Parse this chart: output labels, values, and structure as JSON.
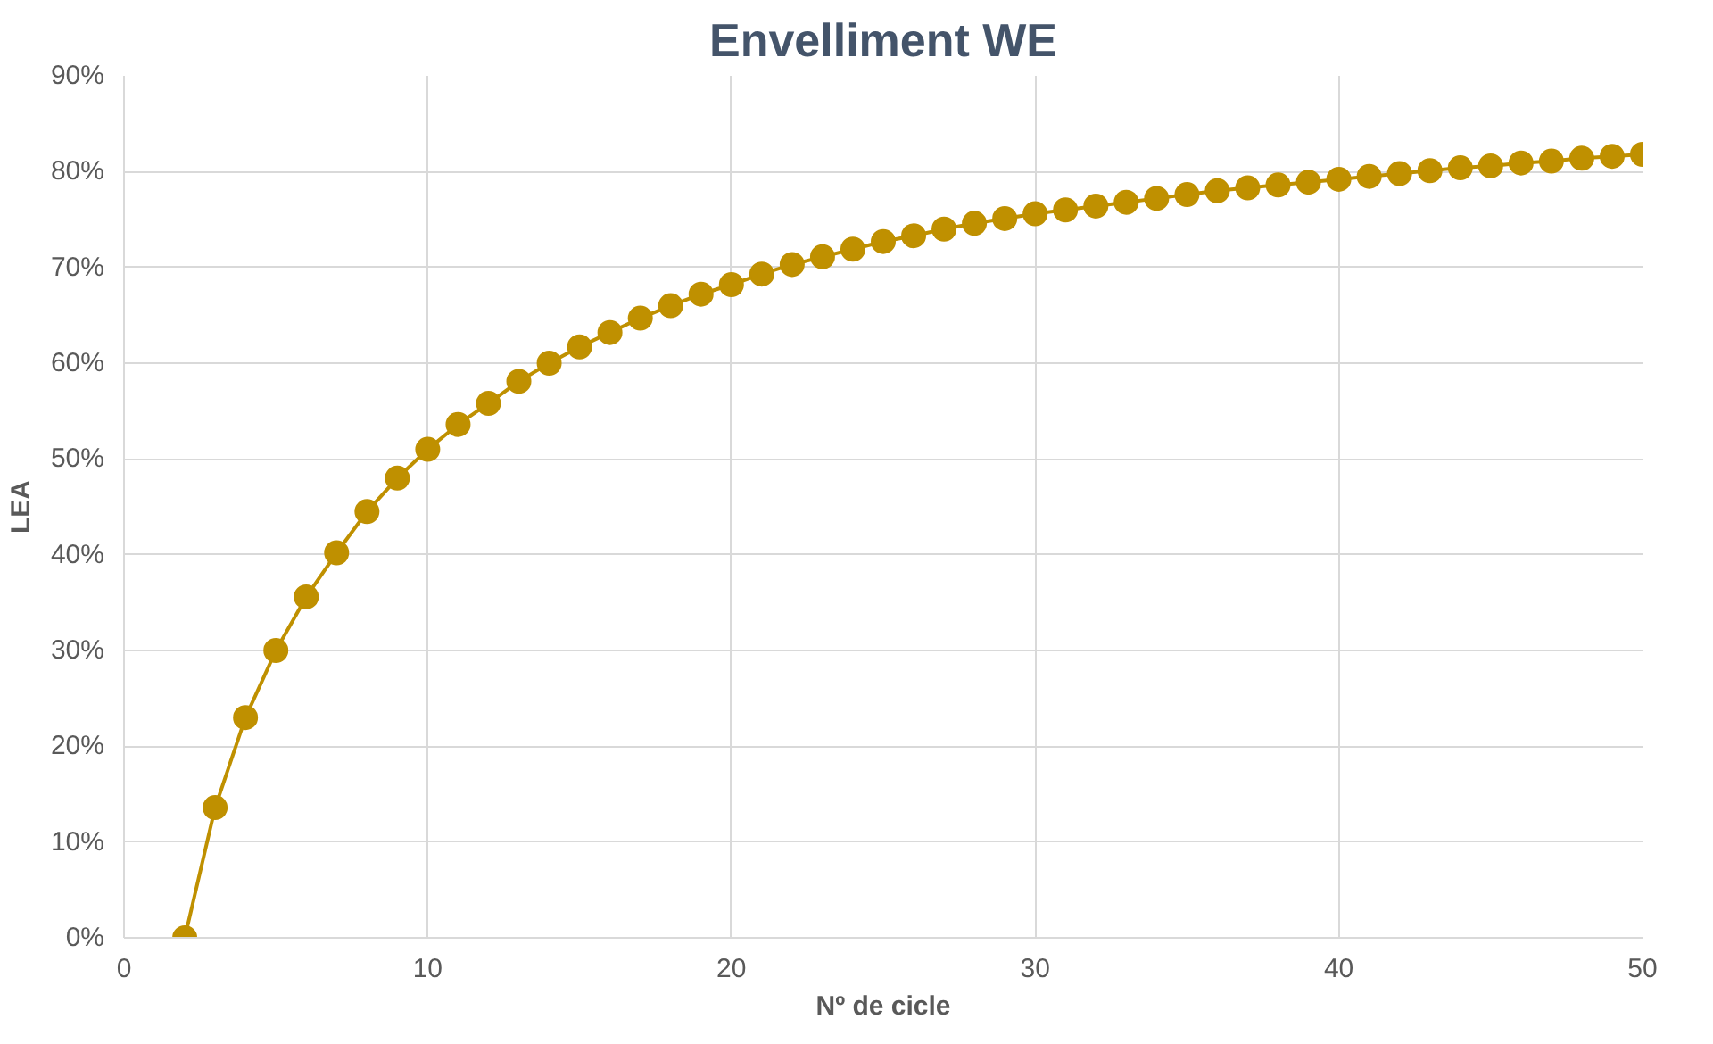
{
  "chart_data": {
    "type": "line",
    "title": "Envelliment WE",
    "xlabel": "Nº de cicle",
    "ylabel": "LEA",
    "x": [
      2,
      3,
      4,
      5,
      6,
      7,
      8,
      9,
      10,
      11,
      12,
      13,
      14,
      15,
      16,
      17,
      18,
      19,
      20,
      21,
      22,
      23,
      24,
      25,
      26,
      27,
      28,
      29,
      30,
      31,
      32,
      33,
      34,
      35,
      36,
      37,
      38,
      39,
      40,
      41,
      42,
      43,
      44,
      45,
      46,
      47,
      48,
      49,
      50
    ],
    "series": [
      {
        "color": "#bf9000",
        "values": [
          0,
          13.6,
          23,
          30,
          35.6,
          40.2,
          44.5,
          48,
          51,
          53.6,
          55.8,
          58.1,
          60,
          61.7,
          63.2,
          64.7,
          66,
          67.2,
          68.2,
          69.3,
          70.3,
          71.1,
          71.9,
          72.7,
          73.3,
          74,
          74.6,
          75.1,
          75.6,
          76,
          76.4,
          76.8,
          77.2,
          77.6,
          78,
          78.3,
          78.6,
          78.9,
          79.2,
          79.5,
          79.8,
          80.1,
          80.4,
          80.6,
          80.9,
          81.1,
          81.4,
          81.6,
          81.8
        ]
      }
    ],
    "xlim": [
      0,
      50
    ],
    "xticks": [
      0,
      10,
      20,
      30,
      40,
      50
    ],
    "ylim": [
      0,
      90
    ],
    "yticks": [
      {
        "value": 0,
        "label": "0%"
      },
      {
        "value": 10,
        "label": "10%"
      },
      {
        "value": 20,
        "label": "20%"
      },
      {
        "value": 30,
        "label": "30%"
      },
      {
        "value": 40,
        "label": "40%"
      },
      {
        "value": 50,
        "label": "50%"
      },
      {
        "value": 60,
        "label": "60%"
      },
      {
        "value": 70,
        "label": "70%"
      },
      {
        "value": 80,
        "label": "80%"
      },
      {
        "value": 90,
        "label": "90%"
      }
    ],
    "grid": true,
    "marker": "circle",
    "line_style": "solid"
  }
}
